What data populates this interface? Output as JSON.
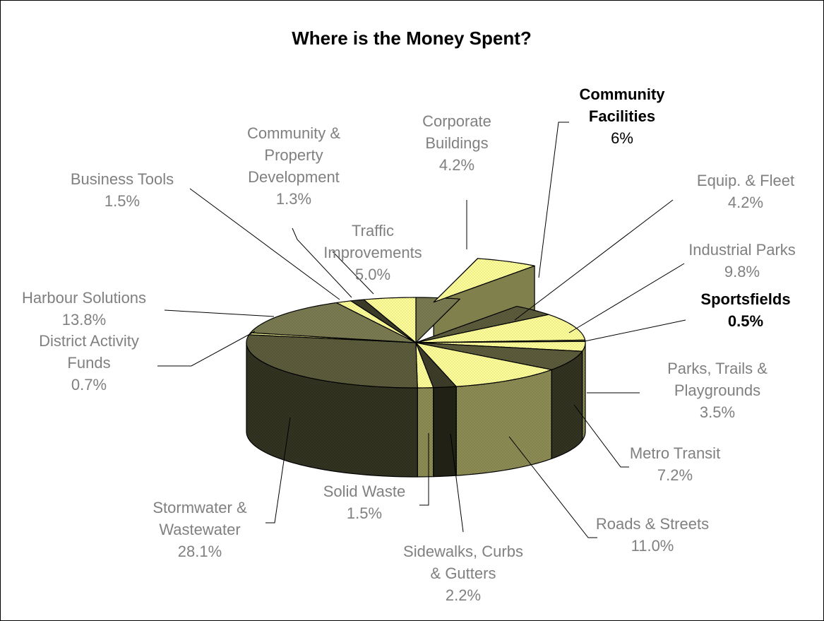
{
  "chart_data": {
    "type": "pie",
    "variant": "3d-exploded",
    "title": "Where is the Money Spent?",
    "unit": "%",
    "slices": [
      {
        "id": "corporate",
        "label_lines": [
          "Corporate",
          "Buildings"
        ],
        "value_label": "4.2%",
        "value": 4.2,
        "color": "#7b7b52"
      },
      {
        "id": "community-facilities",
        "label_lines": [
          "Community",
          "Facilities"
        ],
        "value_label": "6%",
        "value": 6,
        "color": "#ffff99",
        "highlight": true,
        "exploded": true
      },
      {
        "id": "equip",
        "label_lines": [
          "Equip. & Fleet"
        ],
        "value_label": "4.2%",
        "value": 4.2,
        "color": "#5c5c3d"
      },
      {
        "id": "industrial",
        "label_lines": [
          "Industrial Parks"
        ],
        "value_label": "9.8%",
        "value": 9.8,
        "color": "#ffff99"
      },
      {
        "id": "sportsfields",
        "label_lines": [
          "Sportsfields"
        ],
        "value_label": "0.5%",
        "value": 0.5,
        "color": "#7b7b52",
        "highlight": true
      },
      {
        "id": "parks",
        "label_lines": [
          "Parks, Trails &",
          "Playgrounds"
        ],
        "value_label": "3.5%",
        "value": 3.5,
        "color": "#ffff99"
      },
      {
        "id": "metro",
        "label_lines": [
          "Metro Transit"
        ],
        "value_label": "7.2%",
        "value": 7.2,
        "color": "#5c5c3d"
      },
      {
        "id": "roads",
        "label_lines": [
          "Roads & Streets"
        ],
        "value_label": "11.0%",
        "value": 11.0,
        "color": "#ffff99"
      },
      {
        "id": "sidewalks",
        "label_lines": [
          "Sidewalks, Curbs",
          "& Gutters"
        ],
        "value_label": "2.2%",
        "value": 2.2,
        "color": "#3d3d29"
      },
      {
        "id": "solid",
        "label_lines": [
          "Solid Waste"
        ],
        "value_label": "1.5%",
        "value": 1.5,
        "color": "#ffff99"
      },
      {
        "id": "stormwater",
        "label_lines": [
          "Stormwater &",
          "Wastewater"
        ],
        "value_label": "28.1%",
        "value": 28.1,
        "color": "#5c5c3d"
      },
      {
        "id": "district",
        "label_lines": [
          "District Activity",
          "Funds"
        ],
        "value_label": "0.7%",
        "value": 0.7,
        "color": "#ffff99"
      },
      {
        "id": "harbour",
        "label_lines": [
          "Harbour Solutions"
        ],
        "value_label": "13.8%",
        "value": 13.8,
        "color": "#7b7b52"
      },
      {
        "id": "business",
        "label_lines": [
          "Business Tools"
        ],
        "value_label": "1.5%",
        "value": 1.5,
        "color": "#ffff99"
      },
      {
        "id": "community-property",
        "label_lines": [
          "Community &",
          "Property",
          "Development"
        ],
        "value_label": "1.3%",
        "value": 1.3,
        "color": "#3d3d29"
      },
      {
        "id": "traffic",
        "label_lines": [
          "Traffic",
          "Improvements"
        ],
        "value_label": "5.0%",
        "value": 5.0,
        "color": "#ffff99"
      }
    ]
  }
}
